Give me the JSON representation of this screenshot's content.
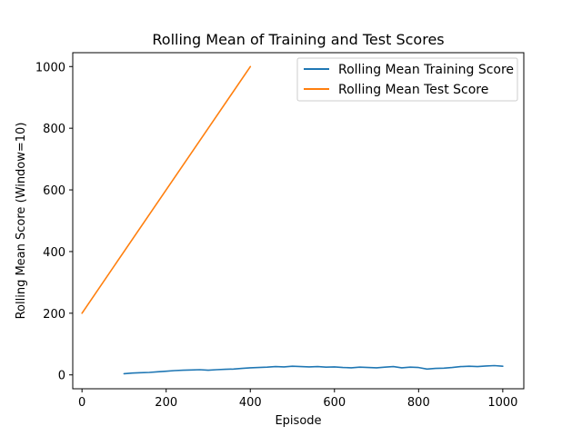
{
  "chart_data": {
    "type": "line",
    "title": "Rolling Mean of Training and Test Scores",
    "xlabel": "Episode",
    "ylabel": "Rolling Mean Score (Window=10)",
    "xlim": [
      -22,
      1050
    ],
    "ylim": [
      -45,
      1045
    ],
    "xticks": [
      0,
      200,
      400,
      600,
      800,
      1000
    ],
    "yticks": [
      0,
      200,
      400,
      600,
      800,
      1000
    ],
    "grid": false,
    "legend_placement": "top-right",
    "series": [
      {
        "name": "Rolling Mean Training Score",
        "color": "#1f77b4",
        "x": [
          100,
          120,
          140,
          160,
          180,
          200,
          220,
          240,
          260,
          280,
          300,
          320,
          340,
          360,
          380,
          400,
          420,
          440,
          460,
          480,
          500,
          520,
          540,
          560,
          580,
          600,
          620,
          640,
          660,
          680,
          700,
          720,
          740,
          760,
          780,
          800,
          820,
          840,
          860,
          880,
          900,
          920,
          940,
          960,
          980,
          1000
        ],
        "y": [
          4,
          6,
          7,
          8,
          10,
          12,
          14,
          15,
          16,
          17,
          15,
          17,
          18,
          19,
          21,
          23,
          24,
          25,
          27,
          26,
          28,
          27,
          26,
          27,
          25,
          26,
          24,
          23,
          25,
          24,
          23,
          25,
          27,
          23,
          25,
          24,
          19,
          21,
          22,
          24,
          27,
          28,
          27,
          29,
          30,
          28
        ]
      },
      {
        "name": "Rolling Mean Test Score",
        "color": "#ff7f0e",
        "x": [
          0,
          100,
          200,
          300,
          400
        ],
        "y": [
          200,
          400,
          600,
          800,
          1000
        ]
      }
    ]
  }
}
